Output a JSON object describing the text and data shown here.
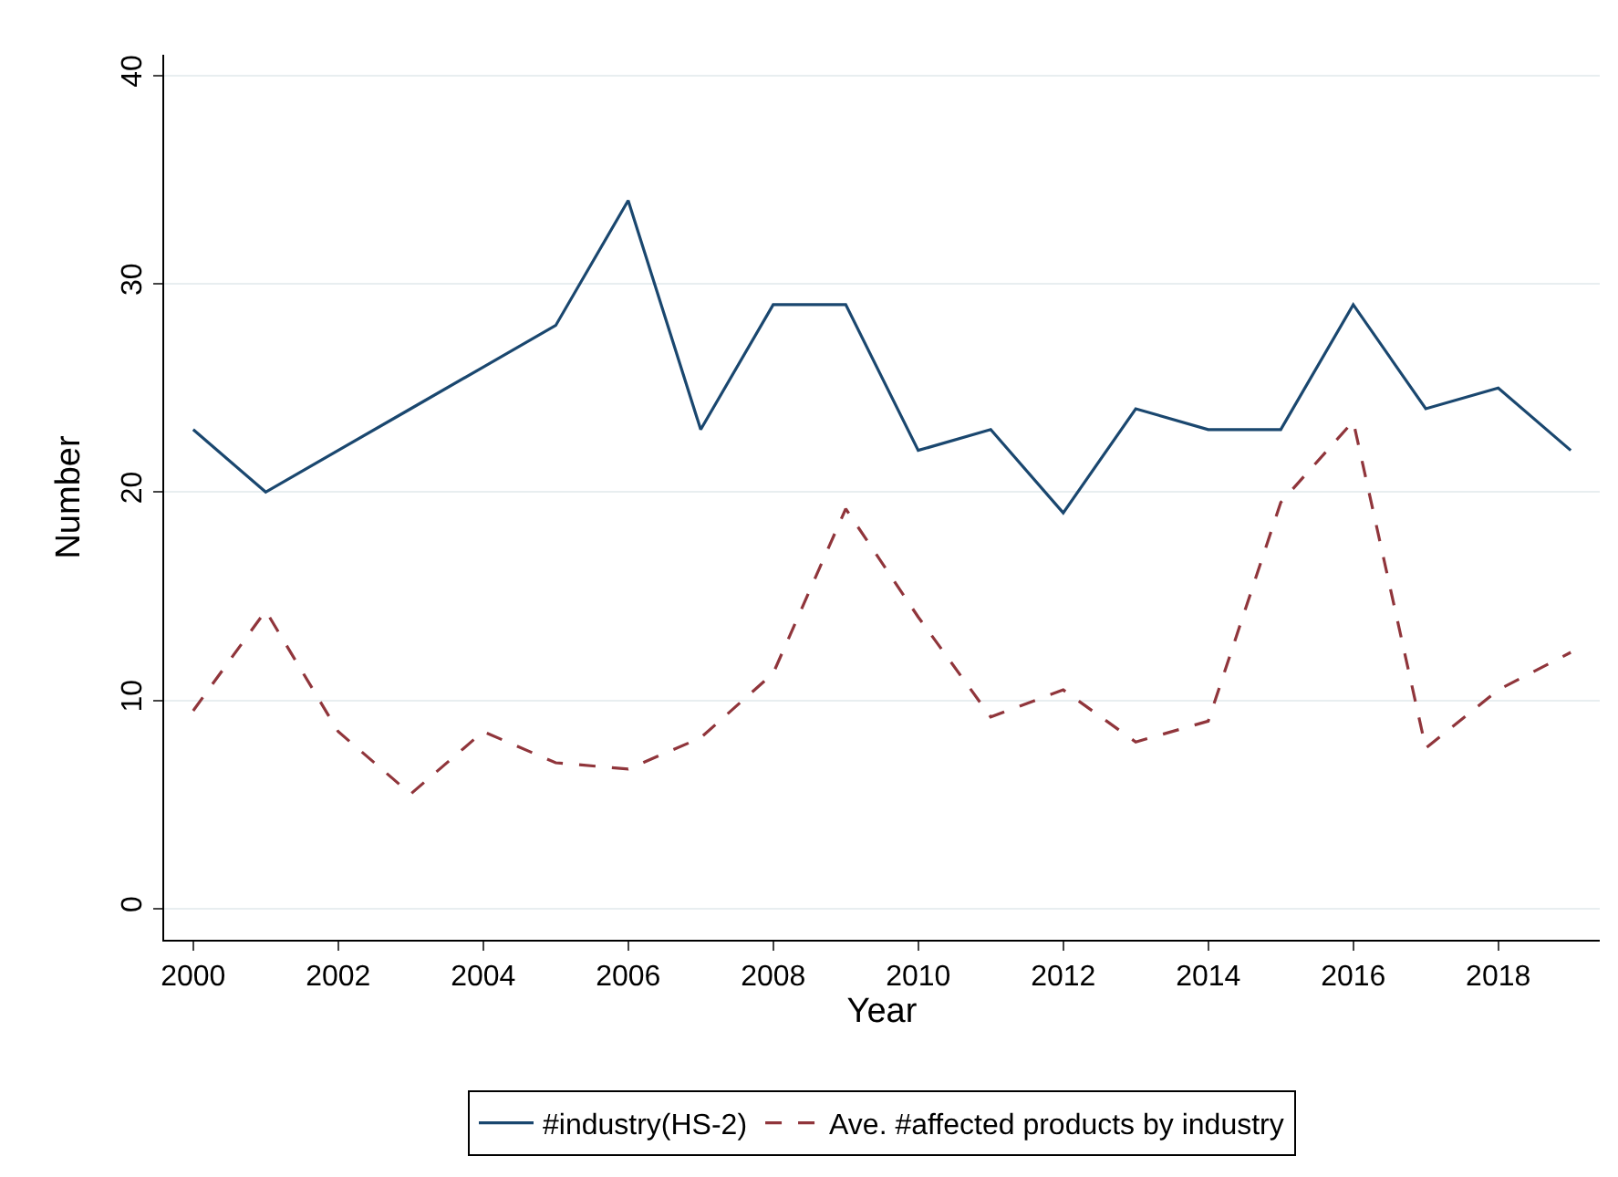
{
  "chart_data": {
    "type": "line",
    "xlabel": "Year",
    "ylabel": "Number",
    "x": [
      2000,
      2001,
      2002,
      2003,
      2004,
      2005,
      2006,
      2007,
      2008,
      2009,
      2010,
      2011,
      2012,
      2013,
      2014,
      2015,
      2016,
      2017,
      2018,
      2019
    ],
    "series": [
      {
        "name": "#industry(HS-2)",
        "color": "#1a476f",
        "line_style": "solid",
        "values": [
          23,
          20,
          22,
          24,
          26,
          28,
          34,
          23,
          29,
          29,
          22,
          23,
          19,
          24,
          23,
          23,
          29,
          24,
          25,
          22
        ]
      },
      {
        "name": "Ave. #affected products by industry",
        "color": "#90353b",
        "line_style": "dashed",
        "values": [
          9.5,
          14.3,
          8.5,
          5.5,
          8.5,
          7,
          6.7,
          8.2,
          11.3,
          19.2,
          14,
          9.2,
          10.5,
          8,
          9,
          19.5,
          23.4,
          7.7,
          10.5,
          12.3
        ]
      }
    ],
    "xlim": [
      1999.6,
      2019.4
    ],
    "xticks": [
      2000,
      2002,
      2004,
      2006,
      2008,
      2010,
      2012,
      2014,
      2016,
      2018
    ],
    "ylim": [
      -1.5,
      41
    ],
    "yticks": [
      0,
      10,
      20,
      30,
      40
    ],
    "grid": "y",
    "legend": "bottom",
    "marker": "none"
  }
}
